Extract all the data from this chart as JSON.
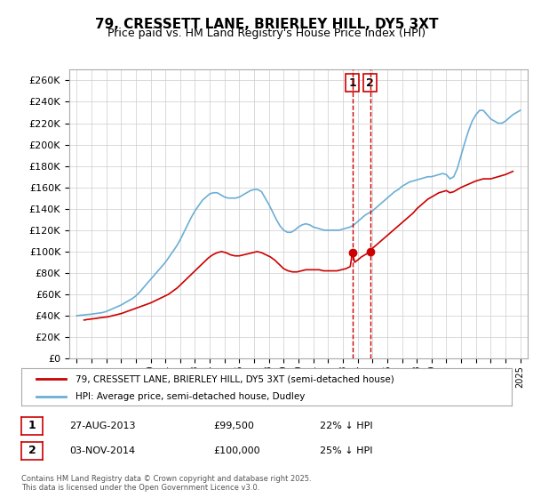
{
  "title": "79, CRESSETT LANE, BRIERLEY HILL, DY5 3XT",
  "subtitle": "Price paid vs. HM Land Registry's House Price Index (HPI)",
  "legend_line1": "79, CRESSETT LANE, BRIERLEY HILL, DY5 3XT (semi-detached house)",
  "legend_line2": "HPI: Average price, semi-detached house, Dudley",
  "footer": "Contains HM Land Registry data © Crown copyright and database right 2025.\nThis data is licensed under the Open Government Licence v3.0.",
  "transaction1_label": "1",
  "transaction1_date": "27-AUG-2013",
  "transaction1_price": "£99,500",
  "transaction1_hpi": "22% ↓ HPI",
  "transaction2_label": "2",
  "transaction2_date": "03-NOV-2014",
  "transaction2_price": "£100,000",
  "transaction2_hpi": "25% ↓ HPI",
  "marker1_x": 2013.65,
  "marker1_y": 99500,
  "marker2_x": 2014.84,
  "marker2_y": 100000,
  "vline1_x": 2013.65,
  "vline2_x": 2014.84,
  "ylim": [
    0,
    270000
  ],
  "xlim_start": 1994.5,
  "xlim_end": 2025.5,
  "hpi_color": "#6baed6",
  "price_color": "#cc0000",
  "vline_color": "#cc0000",
  "background_color": "#ffffff",
  "grid_color": "#cccccc",
  "hpi_data_x": [
    1995.0,
    1995.25,
    1995.5,
    1995.75,
    1996.0,
    1996.25,
    1996.5,
    1996.75,
    1997.0,
    1997.25,
    1997.5,
    1997.75,
    1998.0,
    1998.25,
    1998.5,
    1998.75,
    1999.0,
    1999.25,
    1999.5,
    1999.75,
    2000.0,
    2000.25,
    2000.5,
    2000.75,
    2001.0,
    2001.25,
    2001.5,
    2001.75,
    2002.0,
    2002.25,
    2002.5,
    2002.75,
    2003.0,
    2003.25,
    2003.5,
    2003.75,
    2004.0,
    2004.25,
    2004.5,
    2004.75,
    2005.0,
    2005.25,
    2005.5,
    2005.75,
    2006.0,
    2006.25,
    2006.5,
    2006.75,
    2007.0,
    2007.25,
    2007.5,
    2007.75,
    2008.0,
    2008.25,
    2008.5,
    2008.75,
    2009.0,
    2009.25,
    2009.5,
    2009.75,
    2010.0,
    2010.25,
    2010.5,
    2010.75,
    2011.0,
    2011.25,
    2011.5,
    2011.75,
    2012.0,
    2012.25,
    2012.5,
    2012.75,
    2013.0,
    2013.25,
    2013.5,
    2013.75,
    2014.0,
    2014.25,
    2014.5,
    2014.75,
    2015.0,
    2015.25,
    2015.5,
    2015.75,
    2016.0,
    2016.25,
    2016.5,
    2016.75,
    2017.0,
    2017.25,
    2017.5,
    2017.75,
    2018.0,
    2018.25,
    2018.5,
    2018.75,
    2019.0,
    2019.25,
    2019.5,
    2019.75,
    2020.0,
    2020.25,
    2020.5,
    2020.75,
    2021.0,
    2021.25,
    2021.5,
    2021.75,
    2022.0,
    2022.25,
    2022.5,
    2022.75,
    2023.0,
    2023.25,
    2023.5,
    2023.75,
    2024.0,
    2024.25,
    2024.5,
    2024.75,
    2025.0
  ],
  "hpi_data_y": [
    40000,
    40500,
    40800,
    41200,
    41500,
    42000,
    42500,
    43000,
    44000,
    45500,
    47000,
    48500,
    50000,
    52000,
    54000,
    56000,
    58500,
    62000,
    66000,
    70000,
    74000,
    78000,
    82000,
    86000,
    90000,
    95000,
    100000,
    105000,
    111000,
    118000,
    125000,
    132000,
    138000,
    143000,
    148000,
    151000,
    154000,
    155000,
    155000,
    153000,
    151000,
    150000,
    150000,
    150000,
    151000,
    153000,
    155000,
    157000,
    158000,
    158000,
    156000,
    150000,
    144000,
    137000,
    130000,
    124000,
    120000,
    118000,
    118000,
    120000,
    123000,
    125000,
    126000,
    125000,
    123000,
    122000,
    121000,
    120000,
    120000,
    120000,
    120000,
    120000,
    121000,
    122000,
    123000,
    125000,
    128000,
    131000,
    134000,
    136000,
    138000,
    141000,
    144000,
    147000,
    150000,
    153000,
    156000,
    158000,
    161000,
    163000,
    165000,
    166000,
    167000,
    168000,
    169000,
    170000,
    170000,
    171000,
    172000,
    173000,
    172000,
    168000,
    170000,
    178000,
    190000,
    202000,
    213000,
    222000,
    228000,
    232000,
    232000,
    228000,
    224000,
    222000,
    220000,
    220000,
    222000,
    225000,
    228000,
    230000,
    232000
  ],
  "price_data_x": [
    1995.5,
    1995.6,
    1995.7,
    1996.0,
    1996.3,
    1996.5,
    1996.8,
    1997.1,
    1997.4,
    1997.7,
    1998.0,
    1998.2,
    1998.5,
    1998.8,
    1999.1,
    1999.4,
    1999.7,
    2000.0,
    2000.3,
    2000.6,
    2000.9,
    2001.2,
    2001.5,
    2001.8,
    2002.1,
    2002.4,
    2002.7,
    2003.0,
    2003.3,
    2003.6,
    2003.9,
    2004.2,
    2004.5,
    2004.8,
    2005.1,
    2005.4,
    2005.7,
    2006.0,
    2006.3,
    2006.6,
    2006.9,
    2007.2,
    2007.5,
    2007.8,
    2008.1,
    2008.4,
    2008.7,
    2009.0,
    2009.3,
    2009.6,
    2009.9,
    2010.2,
    2010.5,
    2010.8,
    2011.1,
    2011.4,
    2011.7,
    2012.0,
    2012.3,
    2012.6,
    2012.9,
    2013.2,
    2013.5,
    2013.65,
    2013.8,
    2014.0,
    2014.25,
    2014.5,
    2014.75,
    2014.84,
    2015.0,
    2015.25,
    2015.5,
    2015.75,
    2016.0,
    2016.25,
    2016.5,
    2016.75,
    2017.0,
    2017.25,
    2017.5,
    2017.75,
    2018.0,
    2018.25,
    2018.5,
    2018.75,
    2019.0,
    2019.25,
    2019.5,
    2019.75,
    2020.0,
    2020.25,
    2020.5,
    2020.75,
    2021.0,
    2021.5,
    2022.0,
    2022.5,
    2023.0,
    2023.5,
    2024.0,
    2024.5
  ],
  "price_data_y": [
    36000,
    36200,
    36500,
    37000,
    37500,
    38000,
    38500,
    39000,
    40000,
    41000,
    42000,
    43000,
    44500,
    46000,
    47500,
    49000,
    50500,
    52000,
    54000,
    56000,
    58000,
    60000,
    63000,
    66000,
    70000,
    74000,
    78000,
    82000,
    86000,
    90000,
    94000,
    97000,
    99000,
    100000,
    99000,
    97000,
    96000,
    96000,
    97000,
    98000,
    99000,
    100000,
    99000,
    97000,
    95000,
    92000,
    88000,
    84000,
    82000,
    81000,
    81000,
    82000,
    83000,
    83000,
    83000,
    83000,
    82000,
    82000,
    82000,
    82000,
    83000,
    84000,
    86000,
    99500,
    90000,
    92000,
    95000,
    97000,
    99000,
    100000,
    103000,
    106000,
    109000,
    112000,
    115000,
    118000,
    121000,
    124000,
    127000,
    130000,
    133000,
    136000,
    140000,
    143000,
    146000,
    149000,
    151000,
    153000,
    155000,
    156000,
    157000,
    155000,
    156000,
    158000,
    160000,
    163000,
    166000,
    168000,
    168000,
    170000,
    172000,
    175000
  ]
}
